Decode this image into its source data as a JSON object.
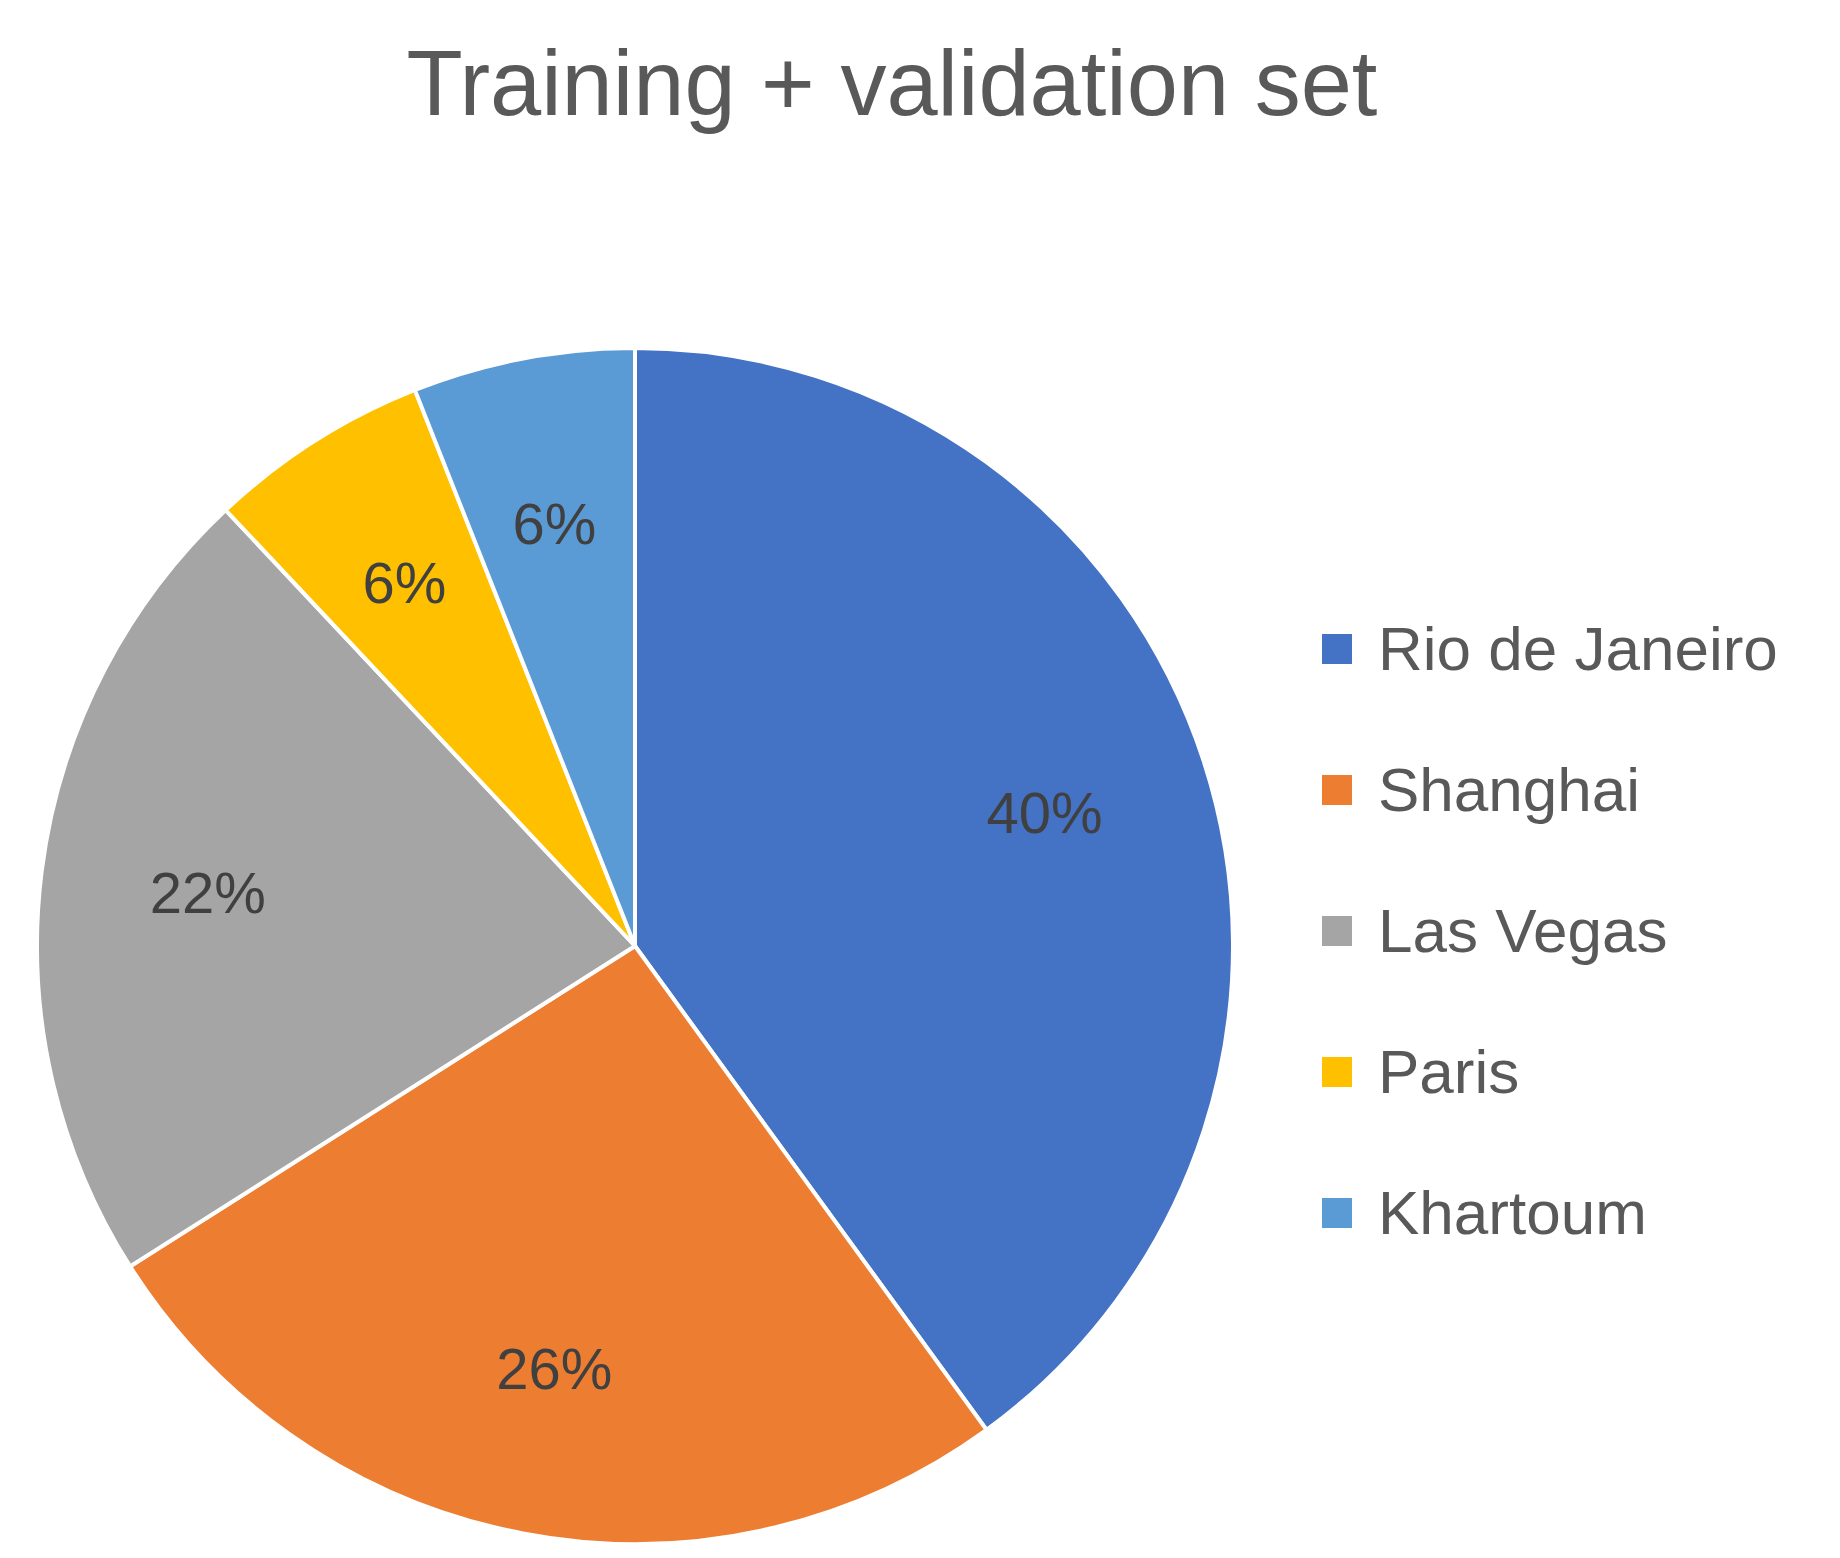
{
  "chart_data": {
    "type": "pie",
    "title": "Training + validation set",
    "categories": [
      "Rio de Janeiro",
      "Shanghai",
      "Las Vegas",
      "Paris",
      "Khartoum"
    ],
    "values": [
      40,
      26,
      22,
      6,
      6
    ],
    "colors": [
      "#4472c4",
      "#ed7d31",
      "#a5a5a5",
      "#ffc000",
      "#5b9bd5"
    ],
    "value_labels": [
      "40%",
      "26%",
      "22%",
      "6%",
      "6%"
    ],
    "legend": "right"
  }
}
